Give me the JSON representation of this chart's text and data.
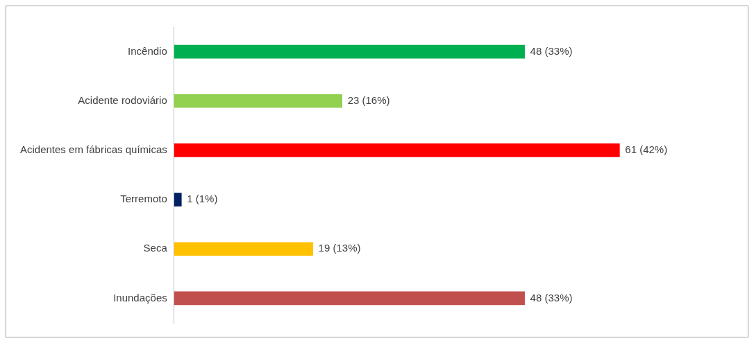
{
  "chart_data": {
    "type": "bar",
    "orientation": "horizontal",
    "categories": [
      "Incêndio",
      "Acidente rodoviário",
      "Acidentes em fábricas químicas",
      "Terremoto",
      "Seca",
      "Inundações"
    ],
    "values": [
      48,
      23,
      61,
      1,
      19,
      48
    ],
    "colors": [
      "#00b050",
      "#92d050",
      "#ff0000",
      "#002060",
      "#ffc000",
      "#c0504d"
    ],
    "value_labels": [
      "48 (33%)",
      "23 (16%)",
      "61 (42%)",
      "1 (1%)",
      "19 (13%)",
      "48 (33%)"
    ],
    "grid": false,
    "legend": false
  }
}
